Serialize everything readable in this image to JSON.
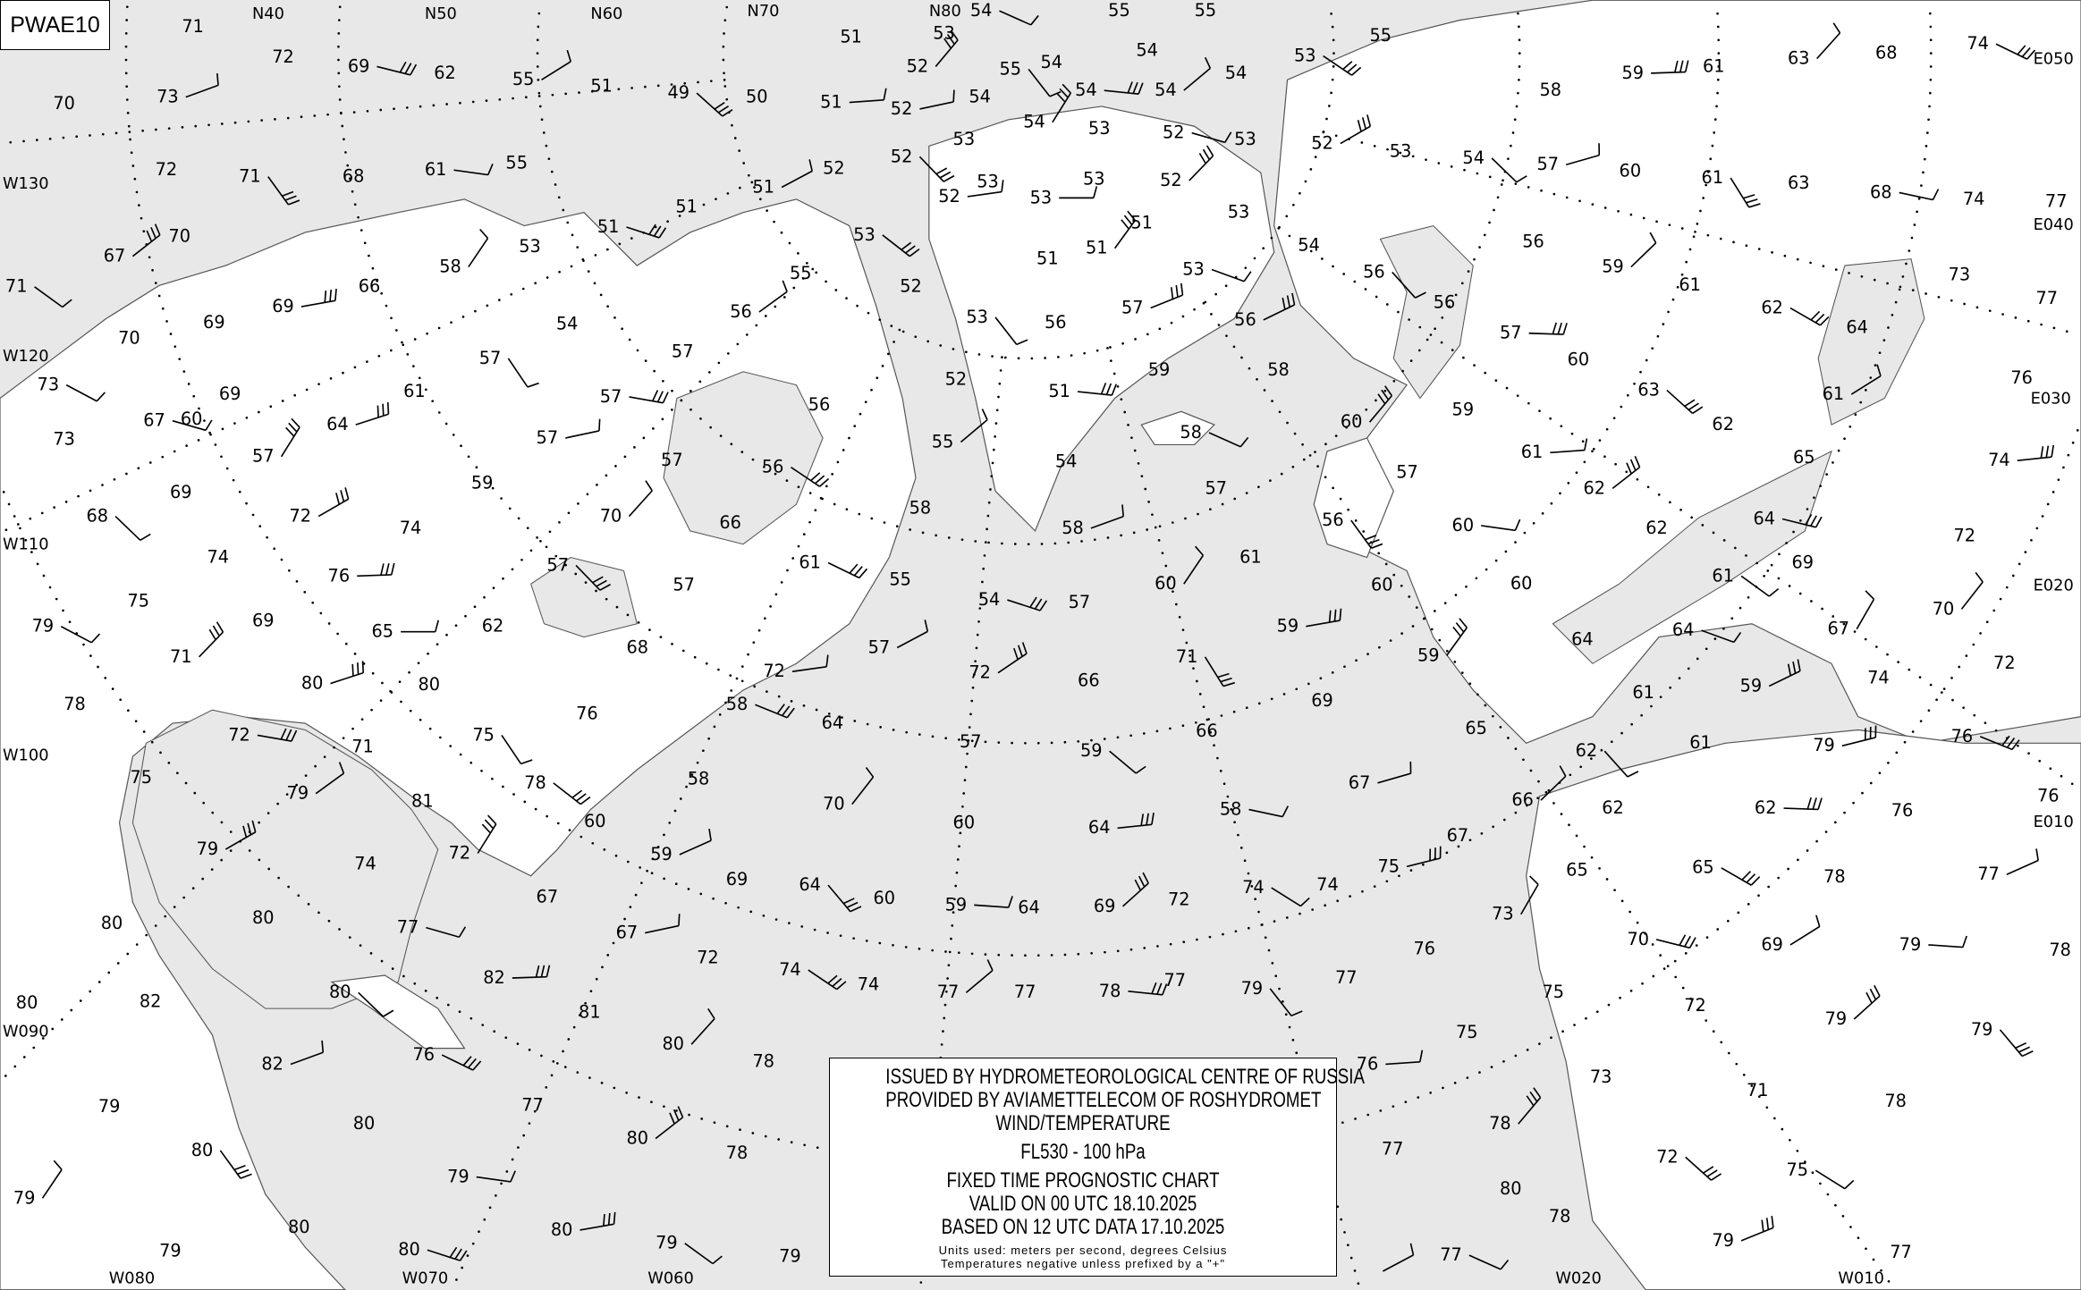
{
  "chart_id": "PWAE10",
  "info_box": {
    "line1": "ISSUED BY HYDROMETEOROLOGICAL CENTRE OF RUSSIA",
    "line2": "PROVIDED BY AVIAMETTELECOM OF ROSHYDROMET",
    "line3": "WIND/TEMPERATURE",
    "level": "FL530 - 100 hPa",
    "chart_type": "FIXED TIME PROGNOSTIC CHART",
    "valid": "VALID ON 00 UTC 18.10.2025",
    "based": "BASED ON 12 UTC DATA 17.10.2025",
    "units": "Units used: meters per second, degrees Celsius",
    "note": "Temperatures negative unless prefixed by a \"+\""
  },
  "grid_labels": [
    "N40",
    "N50",
    "N60",
    "N70",
    "N80",
    "W130",
    "W120",
    "W110",
    "W100",
    "W090",
    "W080",
    "W070",
    "W060",
    "W020",
    "W010",
    "E010",
    "E020",
    "E030",
    "E040",
    "E050"
  ],
  "temperatures": [
    "71",
    "72",
    "69",
    "62",
    "55",
    "51",
    "49",
    "50",
    "51",
    "51",
    "52",
    "53",
    "54",
    "55",
    "55",
    "55",
    "55",
    "54",
    "54",
    "54",
    "54",
    "54",
    "53",
    "54",
    "52",
    "53",
    "54",
    "53",
    "52",
    "53",
    "52",
    "53",
    "54",
    "58",
    "59",
    "61",
    "63",
    "68",
    "74",
    "70",
    "73",
    "72",
    "71",
    "68",
    "61",
    "55",
    "67",
    "70",
    "71",
    "69",
    "69",
    "66",
    "58",
    "53",
    "51",
    "51",
    "51",
    "52",
    "52",
    "53",
    "53",
    "53",
    "52",
    "70",
    "73",
    "69",
    "64",
    "61",
    "57",
    "54",
    "57",
    "57",
    "56",
    "55",
    "53",
    "52",
    "52",
    "51",
    "51",
    "51",
    "53",
    "53",
    "56",
    "54",
    "56",
    "56",
    "57",
    "56",
    "59",
    "61",
    "62",
    "64",
    "57",
    "60",
    "61",
    "63",
    "68",
    "74",
    "77",
    "73",
    "77",
    "76",
    "74",
    "72",
    "70",
    "72",
    "76",
    "76",
    "77",
    "78",
    "79",
    "78",
    "79",
    "78",
    "79",
    "71",
    "75",
    "76",
    "79",
    "74",
    "67",
    "69",
    "64",
    "65",
    "61",
    "62",
    "63",
    "60",
    "61",
    "59",
    "60",
    "58",
    "58",
    "59",
    "57",
    "56",
    "53",
    "52",
    "51",
    "54",
    "55",
    "56",
    "56",
    "57",
    "57",
    "59",
    "57",
    "60",
    "67",
    "69",
    "72",
    "73",
    "68",
    "74",
    "76",
    "74",
    "70",
    "66",
    "61",
    "58",
    "58",
    "57",
    "56",
    "57",
    "60",
    "60",
    "62",
    "62",
    "61",
    "60",
    "59",
    "61",
    "60",
    "57",
    "54",
    "55",
    "57",
    "57",
    "57",
    "62",
    "65",
    "69",
    "71",
    "75",
    "79",
    "78",
    "80",
    "80",
    "75",
    "71",
    "72",
    "75",
    "79",
    "81",
    "78",
    "76",
    "72",
    "68",
    "59",
    "64",
    "64",
    "61",
    "59",
    "61",
    "62",
    "62",
    "62",
    "65",
    "66",
    "65",
    "65",
    "67",
    "67",
    "69",
    "71",
    "66",
    "58",
    "66",
    "72",
    "57",
    "59",
    "60",
    "64",
    "64",
    "70",
    "58",
    "58",
    "60",
    "59",
    "69",
    "64",
    "60",
    "59",
    "64",
    "69",
    "72",
    "74",
    "74",
    "75",
    "76",
    "73",
    "75",
    "70",
    "72",
    "69",
    "73",
    "72",
    "75",
    "76",
    "77",
    "78",
    "78",
    "77",
    "77",
    "79",
    "77",
    "79",
    "77",
    "78",
    "77",
    "77",
    "74",
    "74",
    "72",
    "67",
    "67",
    "72",
    "74",
    "77",
    "80",
    "79",
    "80",
    "80",
    "82",
    "82",
    "81",
    "80",
    "78",
    "76",
    "77",
    "82",
    "79",
    "80",
    "80",
    "79",
    "80",
    "80",
    "78",
    "79",
    "79",
    "80",
    "79",
    "79",
    "80",
    "80",
    "80"
  ]
}
